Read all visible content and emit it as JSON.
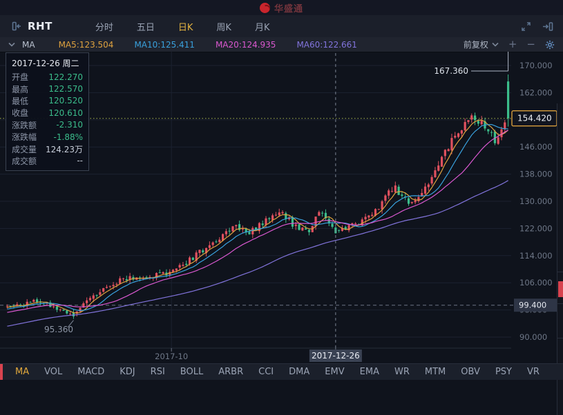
{
  "topbar": {
    "title": "华盛通"
  },
  "symbol_bar": {
    "symbol": "RHT",
    "tabs": [
      "分时",
      "五日",
      "日K",
      "周K",
      "月K"
    ],
    "active_tab": "日K"
  },
  "indicator_bar": {
    "name": "MA",
    "mas": [
      {
        "label": "MA5:123.504",
        "color": "#dfa23f"
      },
      {
        "label": "MA10:125.411",
        "color": "#39a1dd"
      },
      {
        "label": "MA20:124.935",
        "color": "#da58d0"
      },
      {
        "label": "MA60:122.661",
        "color": "#8274dd"
      }
    ],
    "adjust": "前复权",
    "plus": "+",
    "minus": "−"
  },
  "tooltip": {
    "title": "2017-12-26 周二",
    "rows": [
      {
        "label": "开盘",
        "value": "122.270",
        "color": "#3bbd8b"
      },
      {
        "label": "最高",
        "value": "122.570",
        "color": "#3bbd8b"
      },
      {
        "label": "最低",
        "value": "120.520",
        "color": "#3bbd8b"
      },
      {
        "label": "收盘",
        "value": "120.610",
        "color": "#3bbd8b"
      },
      {
        "label": "涨跌额",
        "value": "-2.310",
        "color": "#3bbd8b"
      },
      {
        "label": "涨跌幅",
        "value": "-1.88%",
        "color": "#3bbd8b"
      },
      {
        "label": "成交量",
        "value": "124.23万",
        "color": "#c9cfdb"
      },
      {
        "label": "成交额",
        "value": "--",
        "color": "#c9cfdb"
      }
    ]
  },
  "chart_data": {
    "type": "candlestick",
    "title": "RHT 日K (前复权)",
    "y_ticks": [
      170,
      162,
      154,
      146,
      138,
      130,
      122,
      114,
      106,
      98,
      90
    ],
    "ylim": [
      90,
      170
    ],
    "grid": true,
    "num_candles": 152,
    "trend_anchors": [
      [
        0.0,
        99.0
      ],
      [
        0.037,
        99.8
      ],
      [
        0.071,
        100.8
      ],
      [
        0.099,
        98.3
      ],
      [
        0.13,
        96.0
      ],
      [
        0.153,
        100.0
      ],
      [
        0.195,
        104.5
      ],
      [
        0.229,
        107.3
      ],
      [
        0.27,
        107.6
      ],
      [
        0.329,
        109.2
      ],
      [
        0.359,
        112.0
      ],
      [
        0.393,
        116.0
      ],
      [
        0.427,
        119.5
      ],
      [
        0.455,
        122.8
      ],
      [
        0.482,
        121.0
      ],
      [
        0.512,
        123.5
      ],
      [
        0.544,
        127.6
      ],
      [
        0.571,
        123.2
      ],
      [
        0.599,
        120.8
      ],
      [
        0.626,
        128.3
      ],
      [
        0.641,
        123.5
      ],
      [
        0.656,
        120.9
      ],
      [
        0.681,
        122.2
      ],
      [
        0.708,
        124.4
      ],
      [
        0.736,
        127.5
      ],
      [
        0.756,
        131.5
      ],
      [
        0.773,
        134.3
      ],
      [
        0.79,
        130.8
      ],
      [
        0.811,
        128.6
      ],
      [
        0.832,
        133.5
      ],
      [
        0.855,
        139.5
      ],
      [
        0.877,
        145.5
      ],
      [
        0.896,
        149.5
      ],
      [
        0.914,
        152.5
      ],
      [
        0.93,
        155.0
      ],
      [
        0.948,
        153.0
      ],
      [
        0.964,
        151.0
      ],
      [
        0.975,
        147.5
      ],
      [
        0.986,
        152.0
      ],
      [
        1.0,
        154.4
      ]
    ],
    "crosshair": {
      "t": 0.656,
      "date": "2017-12-26",
      "candle": {
        "open": 122.27,
        "high": 122.57,
        "low": 120.52,
        "close": 120.61
      }
    },
    "last_candle": {
      "open": 165.3,
      "high": 167.36,
      "low": 152.0,
      "close": 154.42
    },
    "high_annotation": {
      "label": "167.360",
      "price": 167.36
    },
    "low_annotation": {
      "label": "95.360",
      "price": 95.36
    },
    "current_price": {
      "value": 154.42,
      "label": "154.420"
    },
    "reference_line": {
      "value": 99.4,
      "label": "99.400"
    },
    "x_labels": [
      {
        "label": "2017-10",
        "t": 0.329
      }
    ],
    "ma_periods": [
      5,
      10,
      20,
      60
    ],
    "ma_colors": [
      "#dfa23f",
      "#39a1dd",
      "#da58d0",
      "#8274dd"
    ],
    "colors": {
      "up": "#e0515f",
      "down": "#3bbd8b",
      "grid": "#1c2230",
      "axis_text": "#6e7787",
      "price_box_border": "#d99e3c",
      "badge_bg": "#2e3546",
      "crosshair": "#7b8494",
      "current_line": "#aab84f",
      "date_badge_bg": "#3a4253",
      "annotation": "#dde2ea"
    },
    "legend_position": "top",
    "ma_values_at_crosshair": {
      "MA5": 123.504,
      "MA10": 125.411,
      "MA20": 124.935,
      "MA60": 122.661
    }
  },
  "bottom_tabs": {
    "items": [
      "MA",
      "VOL",
      "MACD",
      "KDJ",
      "RSI",
      "BOLL",
      "ARBR",
      "CCI",
      "DMA",
      "EMV",
      "EMA",
      "WR",
      "MTM",
      "OBV",
      "PSY",
      "VR"
    ],
    "active": "MA"
  },
  "icons": {
    "collapse_panel": "collapse-left-icon",
    "fullscreen": "expand-icon",
    "popout": "popout-icon",
    "ma_expand": "chevron-down-icon",
    "adjust_expand": "chevron-down-icon",
    "settings": "gear-icon"
  }
}
